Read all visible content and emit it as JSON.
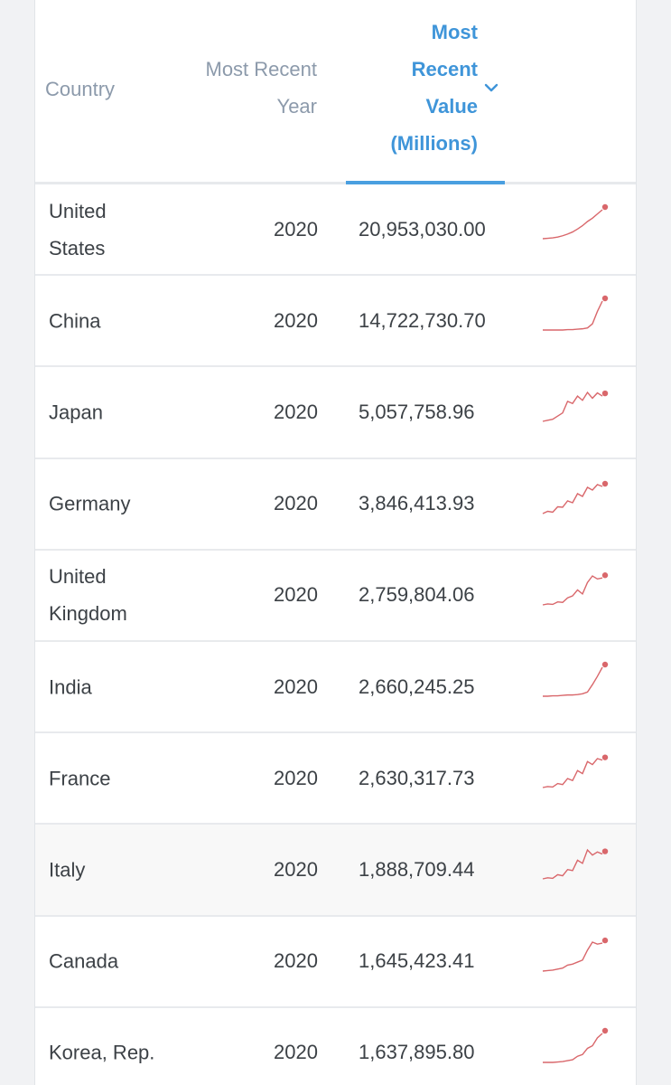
{
  "table": {
    "headers": {
      "country": "Country",
      "year_lines": [
        "Most Recent",
        "Year"
      ],
      "value_lines": [
        "Most",
        "Recent",
        "Value",
        "(Millions)"
      ]
    },
    "accent_color": "#3f95d9",
    "sparkline_color": "#d9676b",
    "rows": [
      {
        "country_lines": [
          "United",
          "States"
        ],
        "year": "2020",
        "value": "20,953,030.00",
        "trend": [
          1,
          2,
          3,
          5,
          8,
          12,
          17,
          24,
          32,
          42,
          50,
          60,
          70
        ]
      },
      {
        "country_lines": [
          "China"
        ],
        "year": "2020",
        "value": "14,722,730.70",
        "trend": [
          0,
          0,
          0,
          0,
          0,
          1,
          1,
          2,
          3,
          5,
          15,
          45,
          70
        ]
      },
      {
        "country_lines": [
          "Japan"
        ],
        "year": "2020",
        "value": "5,057,758.96",
        "trend": [
          0,
          2,
          4,
          10,
          16,
          38,
          34,
          48,
          40,
          55,
          44,
          54,
          48
        ]
      },
      {
        "country_lines": [
          "Germany"
        ],
        "year": "2020",
        "value": "3,846,413.93",
        "trend": [
          0,
          5,
          3,
          15,
          14,
          28,
          24,
          44,
          38,
          58,
          52,
          64,
          60
        ]
      },
      {
        "country_lines": [
          "United",
          "Kingdom"
        ],
        "year": "2020",
        "value": "2,759,804.06",
        "trend": [
          0,
          2,
          1,
          6,
          5,
          14,
          18,
          30,
          22,
          45,
          58,
          52,
          54
        ]
      },
      {
        "country_lines": [
          "India"
        ],
        "year": "2020",
        "value": "2,660,245.25",
        "trend": [
          0,
          0,
          1,
          1,
          2,
          3,
          3,
          4,
          6,
          10,
          28,
          48,
          70
        ]
      },
      {
        "country_lines": [
          "France"
        ],
        "year": "2020",
        "value": "2,630,317.73",
        "trend": [
          0,
          2,
          1,
          8,
          6,
          18,
          14,
          34,
          28,
          52,
          46,
          58,
          55
        ]
      },
      {
        "country_lines": [
          "Italy"
        ],
        "year": "2020",
        "value": "1,888,709.44",
        "trend": [
          0,
          2,
          1,
          8,
          6,
          18,
          16,
          36,
          30,
          56,
          46,
          52,
          48
        ]
      },
      {
        "country_lines": [
          "Canada"
        ],
        "year": "2020",
        "value": "1,645,423.41",
        "trend": [
          0,
          1,
          2,
          4,
          6,
          12,
          14,
          18,
          22,
          42,
          58,
          54,
          56
        ]
      },
      {
        "country_lines": [
          "Korea, Rep."
        ],
        "year": "2020",
        "value": "1,637,895.80",
        "trend": [
          0,
          0,
          0,
          1,
          2,
          4,
          6,
          14,
          18,
          32,
          38,
          56,
          66
        ]
      }
    ]
  }
}
